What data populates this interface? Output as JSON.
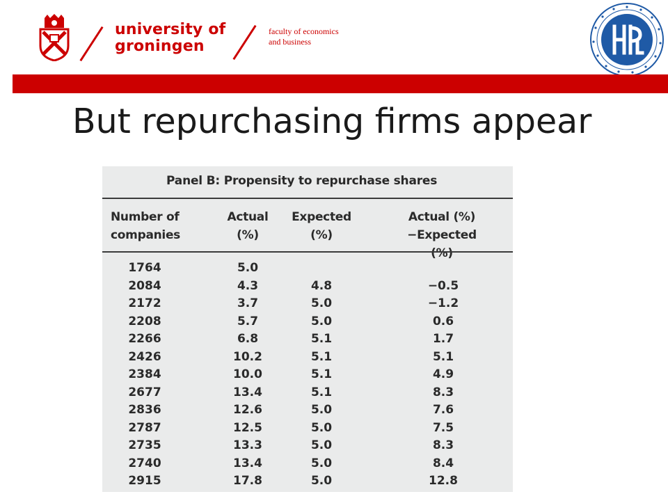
{
  "header": {
    "university_line1": "university of",
    "university_line2": "groningen",
    "faculty_line1": "faculty of economics",
    "faculty_line2": "and business",
    "brand_color": "#cc0000",
    "left_logo_icon": "university-crest-icon",
    "right_logo_icon": "hse-seal-icon"
  },
  "slide": {
    "title": "But repurchasing firms appear"
  },
  "table": {
    "panel_title": "Panel B: Propensity to repurchase shares",
    "columns": [
      {
        "line1": "Number of",
        "line2": "companies"
      },
      {
        "line1": "Actual",
        "line2": "(%)"
      },
      {
        "line1": "Expected",
        "line2": "(%)"
      },
      {
        "line1": "Actual (%) −Expected",
        "line2": "(%)"
      }
    ],
    "rows": [
      [
        "1764",
        "5.0",
        "",
        ""
      ],
      [
        "2084",
        "4.3",
        "4.8",
        "−0.5"
      ],
      [
        "2172",
        "3.7",
        "5.0",
        "−1.2"
      ],
      [
        "2208",
        "5.7",
        "5.0",
        "0.6"
      ],
      [
        "2266",
        "6.8",
        "5.1",
        "1.7"
      ],
      [
        "2426",
        "10.2",
        "5.1",
        "5.1"
      ],
      [
        "2384",
        "10.0",
        "5.1",
        "4.9"
      ],
      [
        "2677",
        "13.4",
        "5.1",
        "8.3"
      ],
      [
        "2836",
        "12.6",
        "5.0",
        "7.6"
      ],
      [
        "2787",
        "12.5",
        "5.0",
        "7.5"
      ],
      [
        "2735",
        "13.3",
        "5.0",
        "8.3"
      ],
      [
        "2740",
        "13.4",
        "5.0",
        "8.4"
      ],
      [
        "2915",
        "17.8",
        "5.0",
        "12.8"
      ]
    ]
  }
}
